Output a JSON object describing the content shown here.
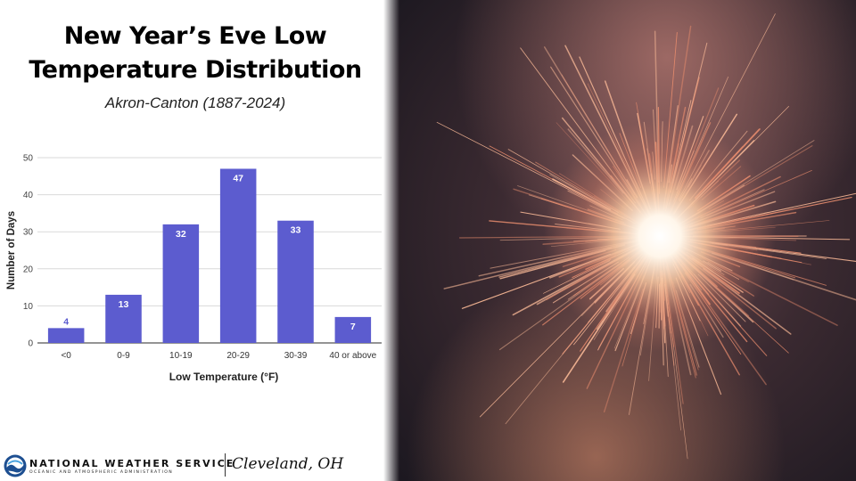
{
  "title_line1": "New Year’s Eve Low",
  "title_line2": "Temperature Distribution",
  "subtitle": "Akron-Canton (1887-2024)",
  "footer": {
    "agency": "NATIONAL WEATHER SERVICE",
    "agency_sub": "OCEANIC AND ATMOSPHERIC ADMINISTRATION",
    "office": "Cleveland, OH"
  },
  "photo_icon": "sparkler-photo",
  "colors": {
    "bar": "#5c5ccf",
    "grid": "#d9d9d9",
    "accent": "#e9a07a"
  },
  "chart_data": {
    "type": "bar",
    "categories": [
      "<0",
      "0-9",
      "10-19",
      "20-29",
      "30-39",
      "40 or above"
    ],
    "values": [
      4,
      13,
      32,
      47,
      33,
      7
    ],
    "value_labels": [
      "4",
      "13",
      "32",
      "47",
      "33",
      "7"
    ],
    "xlabel": "Low Temperature (°F)",
    "ylabel": "Number of Days",
    "ylim": [
      0,
      50
    ],
    "yticks": [
      0,
      10,
      20,
      30,
      40,
      50
    ],
    "grid": true,
    "legend": "none"
  }
}
